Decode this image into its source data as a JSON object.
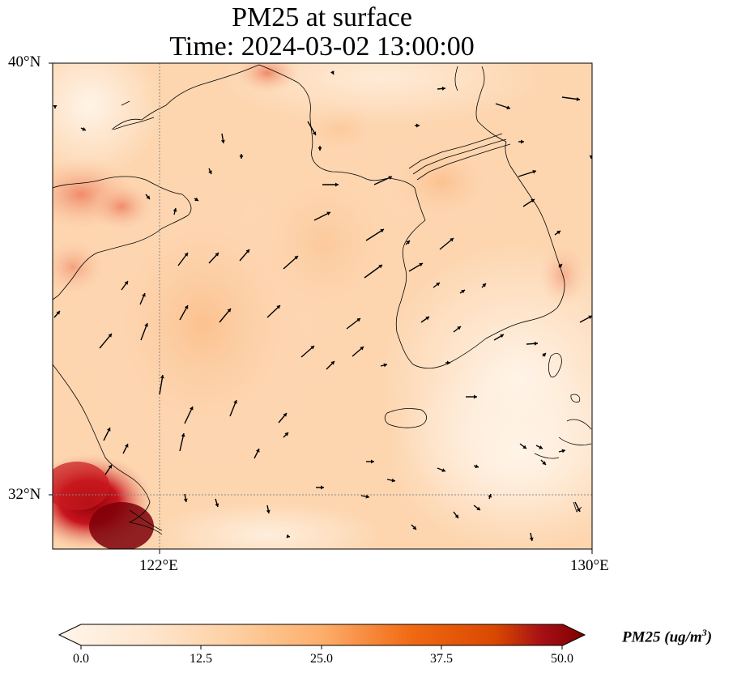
{
  "title": "PM25 at surface",
  "subtitle": "Time: 2024-03-02 13:00:00",
  "axes": {
    "lat_labels": [
      "40°N",
      "32°N"
    ],
    "lon_labels": [
      "122°E",
      "130°E"
    ]
  },
  "colorbar": {
    "label_main": "PM25 (ug/m",
    "label_sup": "3",
    "label_close": ")",
    "ticks": [
      "0.0",
      "12.5",
      "25.0",
      "37.5",
      "50.0"
    ],
    "colormap": [
      "#fff5eb",
      "#fdd9b4",
      "#fdb06f",
      "#f67d3a",
      "#d94801",
      "#a50f15",
      "#67000d"
    ]
  }
}
